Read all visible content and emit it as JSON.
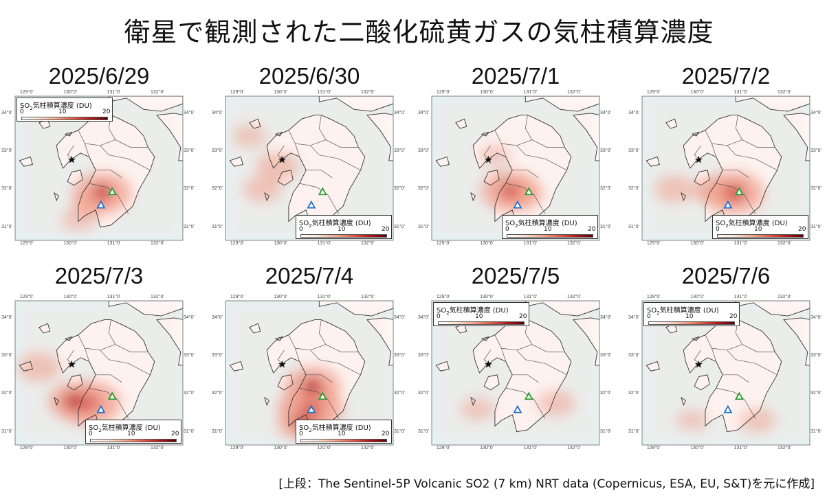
{
  "title": "衛星で観測された二酸化硫黄ガスの気柱積算濃度",
  "footer": "[上段：The Sentinel-5P Volcanic SO2 (7 km) NRT data (Copernicus, ESA, EU, S&T)を元に作成]",
  "legend": {
    "title_prefix": "SO",
    "title_sub": "2",
    "title_suffix": "気柱積算濃度 (DU)",
    "ticks": [
      "0",
      "10",
      "20"
    ]
  },
  "axes": {
    "lon_ticks": [
      "129°0'",
      "130°0'",
      "131°0'",
      "132°0'"
    ],
    "lat_ticks": [
      "34°0'",
      "33°0'",
      "32°0'",
      "31°0'"
    ]
  },
  "colors": {
    "sea": "#dff5f8",
    "land": "#ffffff",
    "coast": "#333333",
    "plume_high": "#b3191f",
    "volcano_green": "#2e9a2e",
    "volcano_blue": "#1e6fd0"
  },
  "markers": {
    "star": "star-marker",
    "green_volcano": "green-triangle-marker",
    "blue_volcano": "blue-triangle-marker"
  },
  "panels": [
    {
      "date": "2025/6/29",
      "legend_pos": "top-left",
      "plume": [
        {
          "lon": 130.75,
          "lat": 31.9,
          "intensity": 0.85
        },
        {
          "lon": 130.5,
          "lat": 31.6,
          "intensity": 0.35
        },
        {
          "lon": 130.2,
          "lat": 31.2,
          "intensity": 0.25
        }
      ]
    },
    {
      "date": "2025/6/30",
      "legend_pos": "bottom-right",
      "plume": [
        {
          "lon": 129.95,
          "lat": 32.6,
          "intensity": 0.45
        },
        {
          "lon": 129.6,
          "lat": 32.0,
          "intensity": 0.35
        },
        {
          "lon": 129.3,
          "lat": 33.4,
          "intensity": 0.25
        }
      ]
    },
    {
      "date": "2025/7/1",
      "legend_pos": "bottom-right",
      "plume": [
        {
          "lon": 130.55,
          "lat": 31.95,
          "intensity": 0.85
        },
        {
          "lon": 130.85,
          "lat": 31.85,
          "intensity": 0.4
        },
        {
          "lon": 130.2,
          "lat": 32.9,
          "intensity": 0.2
        }
      ]
    },
    {
      "date": "2025/7/2",
      "legend_pos": "bottom-right",
      "plume": [
        {
          "lon": 130.85,
          "lat": 31.9,
          "intensity": 0.9
        },
        {
          "lon": 130.4,
          "lat": 31.95,
          "intensity": 0.45
        },
        {
          "lon": 129.5,
          "lat": 32.0,
          "intensity": 0.4
        }
      ]
    },
    {
      "date": "2025/7/3",
      "legend_pos": "bottom-right",
      "plume": [
        {
          "lon": 130.45,
          "lat": 31.75,
          "intensity": 0.95
        },
        {
          "lon": 130.1,
          "lat": 31.8,
          "intensity": 0.7
        },
        {
          "lon": 129.3,
          "lat": 32.7,
          "intensity": 0.45
        }
      ]
    },
    {
      "date": "2025/7/4",
      "legend_pos": "bottom-right",
      "plume": [
        {
          "lon": 130.7,
          "lat": 31.6,
          "intensity": 1.0
        },
        {
          "lon": 130.75,
          "lat": 32.2,
          "intensity": 0.8
        },
        {
          "lon": 130.5,
          "lat": 31.2,
          "intensity": 0.6
        }
      ]
    },
    {
      "date": "2025/7/5",
      "legend_pos": "top-left",
      "plume": [
        {
          "lon": 131.6,
          "lat": 31.75,
          "intensity": 0.35
        },
        {
          "lon": 129.8,
          "lat": 31.6,
          "intensity": 0.25
        }
      ]
    },
    {
      "date": "2025/7/6",
      "legend_pos": "top-left",
      "plume": [
        {
          "lon": 131.4,
          "lat": 31.3,
          "intensity": 0.3
        },
        {
          "lon": 129.9,
          "lat": 31.3,
          "intensity": 0.2
        }
      ]
    }
  ]
}
